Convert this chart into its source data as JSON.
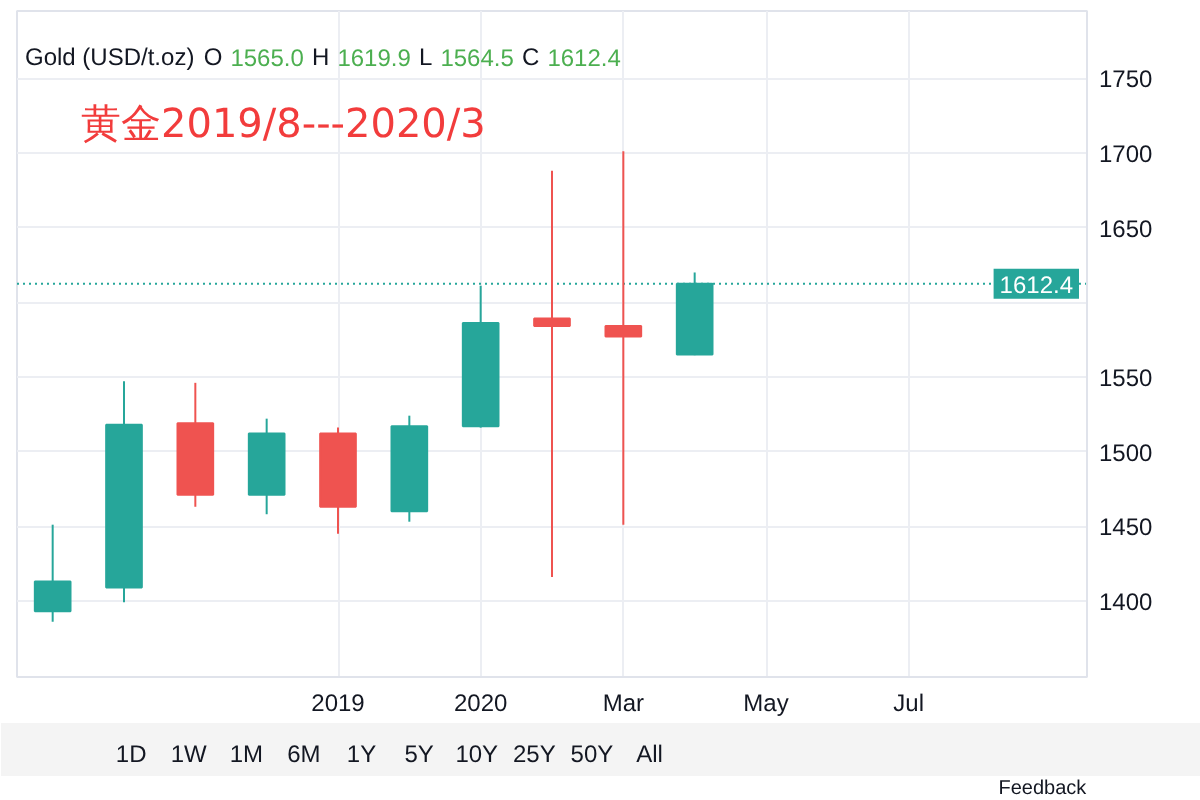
{
  "chart_data": {
    "type": "candlestick",
    "title": "Gold (USD/t.oz)",
    "subtitle": "黄金2019/8---2020/3",
    "annotations": [
      "O 1565.0 H 1619.9 L 1564.5 C 1612.4",
      "1D",
      "1W",
      "1M",
      "6M",
      "1Y",
      "5Y",
      "10Y",
      "25Y",
      "50Y",
      "All",
      "Feedback"
    ],
    "categories": [
      null,
      null,
      null,
      null,
      "2019",
      null,
      "2020",
      null,
      "Mar",
      null,
      "May",
      null,
      "Jul",
      null,
      null
    ],
    "ohlc": [
      [
        1393,
        1451,
        1386,
        1413
      ],
      [
        1409,
        1547,
        1399,
        1518
      ],
      [
        1519,
        1546,
        1463,
        1471
      ],
      [
        1471,
        1522,
        1458,
        1512
      ],
      [
        1512,
        1516,
        1445,
        1463
      ],
      [
        1460,
        1524,
        1453,
        1517
      ],
      [
        1517,
        1611,
        1516,
        1586
      ],
      [
        1589,
        1688,
        1416,
        1584
      ],
      [
        1584,
        1701,
        1451,
        1577
      ],
      [
        1565.0,
        1619.9,
        1564.5,
        1612.4
      ],
      null,
      null,
      null,
      null,
      null
    ],
    "colors": [
      "#26a69a",
      "#26a69a",
      "#ef5350",
      "#26a69a",
      "#ef5350",
      "#26a69a",
      "#26a69a",
      "#ef5350",
      "#ef5350",
      "#26a69a",
      null,
      null,
      null,
      null,
      null
    ],
    "ylim": [
      1349,
      1795
    ],
    "yticks": [
      1400,
      1450,
      1500,
      1550,
      {
        "value": 1600,
        "label": null
      },
      1650,
      1700,
      1750
    ],
    "grid": true,
    "ref_lines": [
      {
        "axis": "y",
        "value": 1612.4,
        "label": "1612.4",
        "color": "#26a69a",
        "line_style": "dotted"
      }
    ]
  }
}
